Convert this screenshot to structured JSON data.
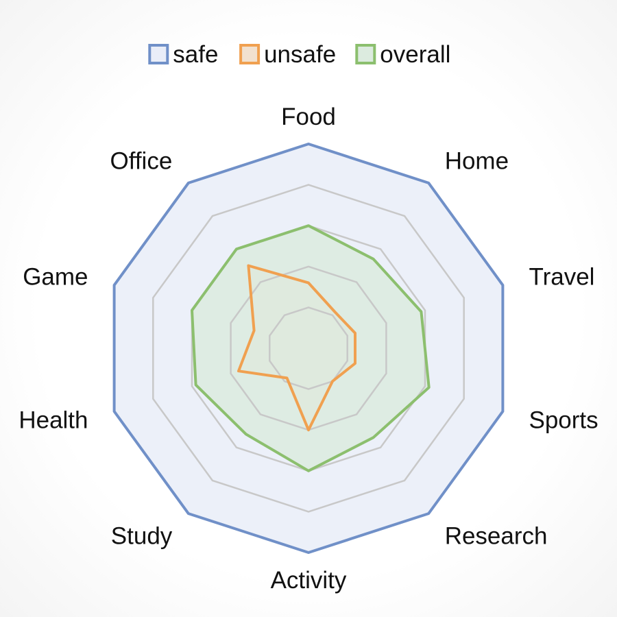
{
  "chart_data": {
    "type": "radar",
    "categories": [
      "Food",
      "Home",
      "Travel",
      "Sports",
      "Research",
      "Activity",
      "Study",
      "Health",
      "Game",
      "Office"
    ],
    "rlim": [
      0,
      5
    ],
    "gridlines": [
      1,
      2,
      3,
      4
    ],
    "legend_position": "top",
    "series": [
      {
        "name": "safe",
        "values": [
          5.0,
          5.0,
          5.0,
          5.0,
          5.0,
          5.0,
          5.0,
          5.0,
          5.0,
          5.0
        ],
        "color": "#7090c8",
        "fill": "#e9edf8"
      },
      {
        "name": "unsafe",
        "values": [
          1.6,
          1.1,
          1.2,
          1.2,
          1.0,
          2.0,
          0.9,
          1.8,
          1.4,
          2.5
        ],
        "color": "#f0a050",
        "fill": "#f2e1cf"
      },
      {
        "name": "overall",
        "values": [
          3.0,
          2.7,
          2.9,
          3.1,
          2.7,
          3.0,
          2.6,
          2.9,
          3.0,
          3.0
        ],
        "color": "#8cbf6e",
        "fill": "#dcebdf"
      }
    ]
  }
}
